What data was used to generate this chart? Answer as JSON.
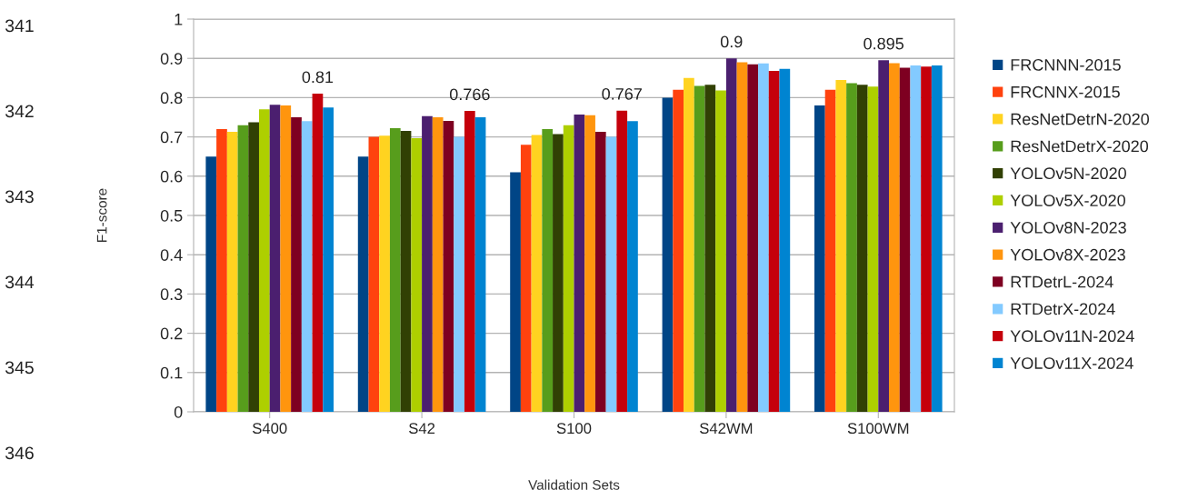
{
  "chart_data": {
    "type": "bar",
    "xlabel": "Validation Sets",
    "ylabel": "F1-score",
    "categories": [
      "S400",
      "S42",
      "S100",
      "S42WM",
      "S100WM"
    ],
    "series": [
      {
        "name": "FRCNNN-2015",
        "color": "#004586",
        "values": [
          0.65,
          0.65,
          0.61,
          0.8,
          0.78
        ]
      },
      {
        "name": "FRCNNX-2015",
        "color": "#ff420e",
        "values": [
          0.72,
          0.7,
          0.68,
          0.82,
          0.82
        ]
      },
      {
        "name": "ResNetDetrN-2020",
        "color": "#ffd320",
        "values": [
          0.713,
          0.703,
          0.705,
          0.85,
          0.845
        ]
      },
      {
        "name": "ResNetDetrX-2020",
        "color": "#579d1c",
        "values": [
          0.73,
          0.722,
          0.72,
          0.83,
          0.837
        ]
      },
      {
        "name": "YOLOv5N-2020",
        "color": "#314004",
        "values": [
          0.737,
          0.715,
          0.707,
          0.833,
          0.833
        ]
      },
      {
        "name": "YOLOv5X-2020",
        "color": "#aecf00",
        "values": [
          0.77,
          0.697,
          0.73,
          0.818,
          0.828
        ]
      },
      {
        "name": "YOLOv8N-2023",
        "color": "#4b1f6f",
        "values": [
          0.782,
          0.753,
          0.757,
          0.9,
          0.895
        ],
        "value_labels": [
          null,
          null,
          null,
          "0.9",
          "0.895"
        ]
      },
      {
        "name": "YOLOv8X-2023",
        "color": "#ff950e",
        "values": [
          0.78,
          0.75,
          0.755,
          0.89,
          0.888
        ]
      },
      {
        "name": "RTDetrL-2024",
        "color": "#7e0021",
        "values": [
          0.75,
          0.741,
          0.713,
          0.885,
          0.876
        ]
      },
      {
        "name": "RTDetrX-2024",
        "color": "#83caff",
        "values": [
          0.74,
          0.7,
          0.7,
          0.887,
          0.882
        ]
      },
      {
        "name": "YOLOv11N-2024",
        "color": "#c5000b",
        "values": [
          0.81,
          0.766,
          0.767,
          0.868,
          0.879
        ],
        "value_labels": [
          "0.81",
          "0.766",
          "0.767",
          null,
          null
        ]
      },
      {
        "name": "YOLOv11X-2024",
        "color": "#0084d1",
        "values": [
          0.775,
          0.75,
          0.74,
          0.873,
          0.882
        ]
      }
    ],
    "ylim": [
      0,
      1
    ],
    "yticks": [
      0,
      0.1,
      0.2,
      0.3,
      0.4,
      0.5,
      0.6,
      0.7,
      0.8,
      0.9,
      1
    ],
    "grid": "y",
    "legend": "right",
    "annotations": [
      "341",
      "342",
      "343",
      "344",
      "345",
      "346"
    ]
  }
}
